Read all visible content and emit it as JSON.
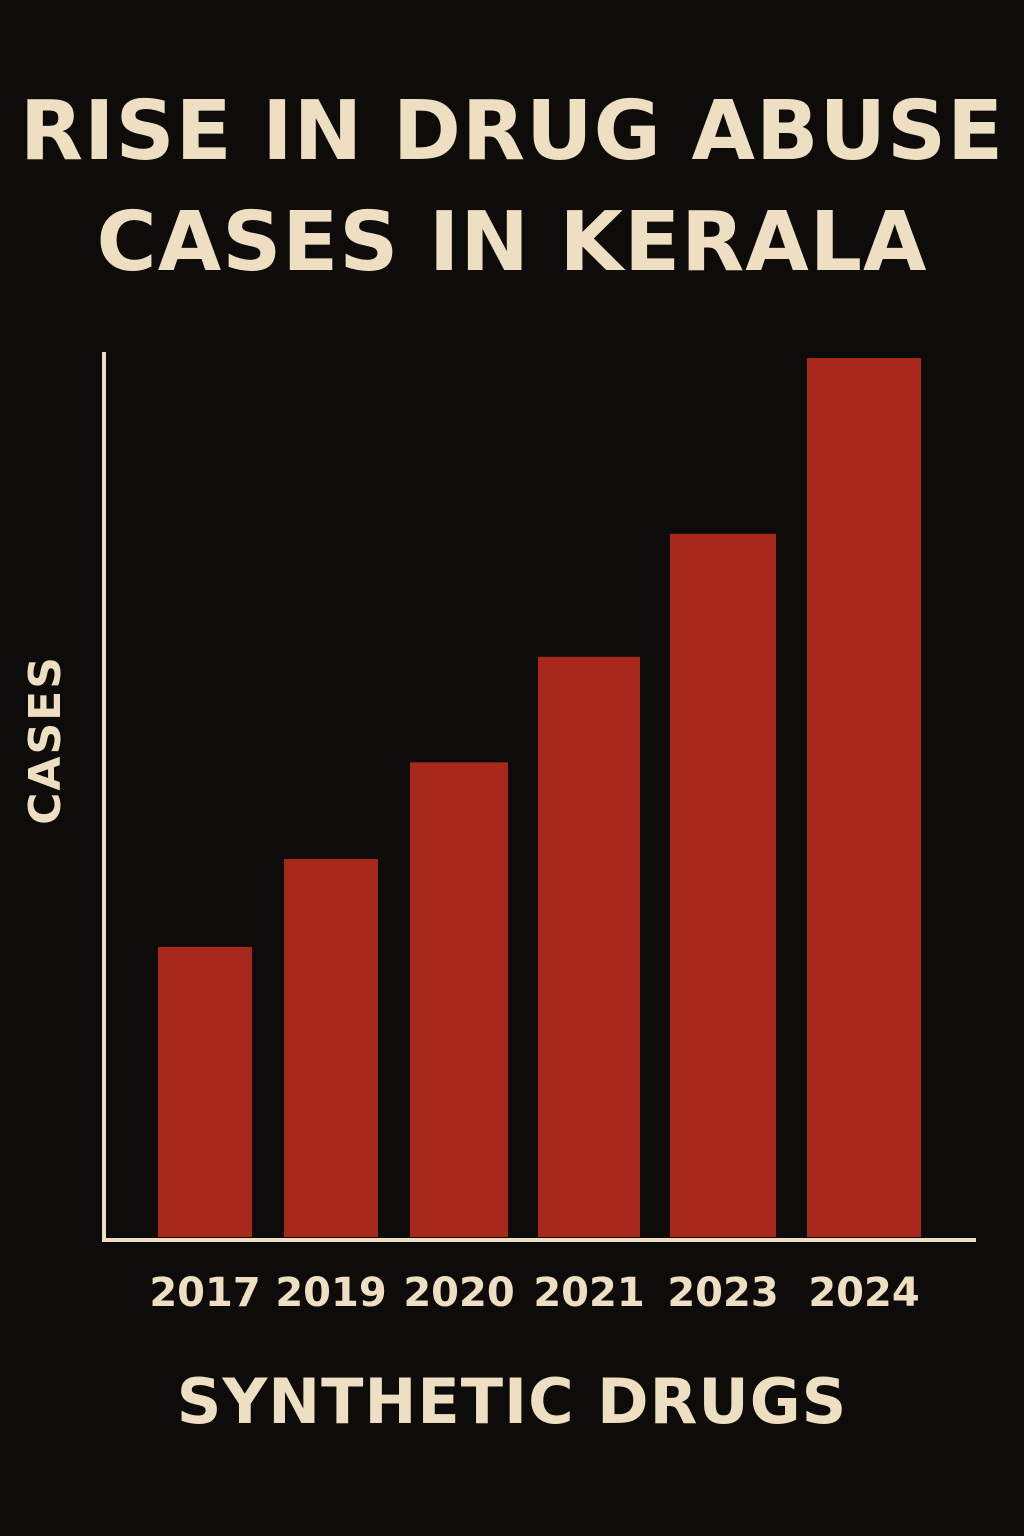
{
  "colors": {
    "background": "#0e0c0a",
    "text": "#efdfc2",
    "bar": "#a8281b",
    "axis": "#efdfc2"
  },
  "chart_data": {
    "type": "bar",
    "title": "RISE IN DRUG ABUSE CASES IN KERALA",
    "title_lines": [
      "RISE IN DRUG ABUSE",
      "CASES IN KERALA"
    ],
    "xlabel": "SYNTHETIC DRUGS",
    "ylabel": "CASES",
    "categories": [
      "2017",
      "2019",
      "2020",
      "2021",
      "2023",
      "2024"
    ],
    "values": [
      33,
      43,
      54,
      66,
      80,
      100
    ],
    "ylim": [
      0,
      100
    ],
    "grid": false,
    "legend": "none",
    "y_ticks_shown": false
  }
}
